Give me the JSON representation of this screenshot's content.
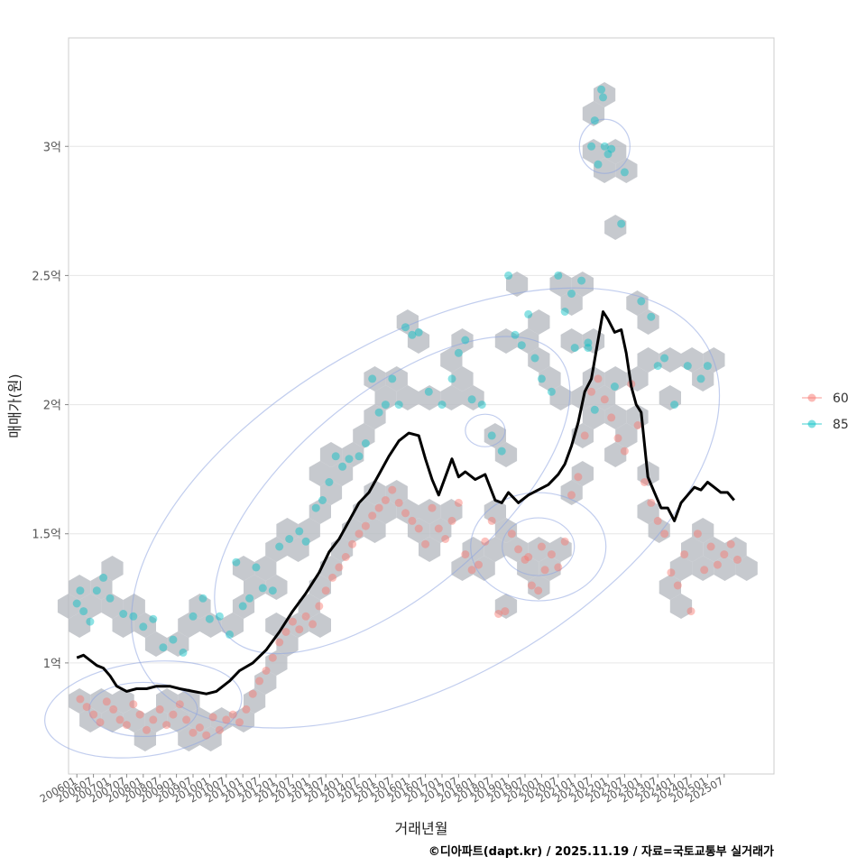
{
  "chart_data": {
    "type": "scatter",
    "title": "",
    "xlabel": "거래년월",
    "ylabel": "매매가(원)",
    "caption": "©디아파트(dapt.kr) / 2025.11.19 / 자료=국토교통부 실거래가",
    "xlim": [
      2005.75,
      2027.0
    ],
    "ylim": [
      0.57,
      3.42
    ],
    "grid": true,
    "legend_position": "right",
    "y_ticks": [
      {
        "value": 1.0,
        "label": "1억"
      },
      {
        "value": 1.5,
        "label": "1.5억"
      },
      {
        "value": 2.0,
        "label": "2억"
      },
      {
        "value": 2.5,
        "label": "2.5억"
      },
      {
        "value": 3.0,
        "label": "3억"
      }
    ],
    "x_ticks": [
      {
        "value": 2006.0,
        "label": "200601"
      },
      {
        "value": 2006.5,
        "label": "200607"
      },
      {
        "value": 2007.0,
        "label": "200701"
      },
      {
        "value": 2007.5,
        "label": "200707"
      },
      {
        "value": 2008.0,
        "label": "200801"
      },
      {
        "value": 2008.5,
        "label": "200807"
      },
      {
        "value": 2009.0,
        "label": "200901"
      },
      {
        "value": 2009.5,
        "label": "200907"
      },
      {
        "value": 2010.0,
        "label": "201001"
      },
      {
        "value": 2010.5,
        "label": "201007"
      },
      {
        "value": 2011.0,
        "label": "201101"
      },
      {
        "value": 2011.5,
        "label": "201107"
      },
      {
        "value": 2012.0,
        "label": "201201"
      },
      {
        "value": 2012.5,
        "label": "201207"
      },
      {
        "value": 2013.0,
        "label": "201301"
      },
      {
        "value": 2013.5,
        "label": "201307"
      },
      {
        "value": 2014.0,
        "label": "201401"
      },
      {
        "value": 2014.5,
        "label": "201407"
      },
      {
        "value": 2015.0,
        "label": "201501"
      },
      {
        "value": 2015.5,
        "label": "201507"
      },
      {
        "value": 2016.0,
        "label": "201601"
      },
      {
        "value": 2016.5,
        "label": "201607"
      },
      {
        "value": 2017.0,
        "label": "201701"
      },
      {
        "value": 2017.5,
        "label": "201707"
      },
      {
        "value": 2018.0,
        "label": "201801"
      },
      {
        "value": 2018.5,
        "label": "201807"
      },
      {
        "value": 2019.0,
        "label": "201901"
      },
      {
        "value": 2019.5,
        "label": "201907"
      },
      {
        "value": 2020.0,
        "label": "202001"
      },
      {
        "value": 2020.5,
        "label": "202007"
      },
      {
        "value": 2021.0,
        "label": "202101"
      },
      {
        "value": 2021.5,
        "label": "202107"
      },
      {
        "value": 2022.0,
        "label": "202201"
      },
      {
        "value": 2022.5,
        "label": "202207"
      },
      {
        "value": 2023.0,
        "label": "202301"
      },
      {
        "value": 2023.5,
        "label": "202307"
      },
      {
        "value": 2024.0,
        "label": "202401"
      },
      {
        "value": 2024.5,
        "label": "202407"
      },
      {
        "value": 2025.0,
        "label": "202501"
      },
      {
        "value": 2025.5,
        "label": "202507"
      }
    ],
    "series": [
      {
        "name": "60",
        "color": "#f8766d",
        "points": [
          [
            2006.1,
            0.86
          ],
          [
            2006.3,
            0.83
          ],
          [
            2006.5,
            0.8
          ],
          [
            2006.7,
            0.77
          ],
          [
            2006.9,
            0.85
          ],
          [
            2007.1,
            0.82
          ],
          [
            2007.3,
            0.78
          ],
          [
            2007.5,
            0.76
          ],
          [
            2007.7,
            0.84
          ],
          [
            2007.9,
            0.8
          ],
          [
            2008.1,
            0.74
          ],
          [
            2008.3,
            0.78
          ],
          [
            2008.5,
            0.82
          ],
          [
            2008.7,
            0.76
          ],
          [
            2008.9,
            0.8
          ],
          [
            2009.1,
            0.84
          ],
          [
            2009.3,
            0.78
          ],
          [
            2009.5,
            0.73
          ],
          [
            2009.7,
            0.75
          ],
          [
            2009.9,
            0.72
          ],
          [
            2010.1,
            0.79
          ],
          [
            2010.3,
            0.74
          ],
          [
            2010.5,
            0.78
          ],
          [
            2010.7,
            0.8
          ],
          [
            2010.9,
            0.77
          ],
          [
            2011.1,
            0.82
          ],
          [
            2011.3,
            0.88
          ],
          [
            2011.5,
            0.93
          ],
          [
            2011.7,
            0.97
          ],
          [
            2011.9,
            1.02
          ],
          [
            2012.1,
            1.08
          ],
          [
            2012.3,
            1.12
          ],
          [
            2012.5,
            1.16
          ],
          [
            2012.7,
            1.13
          ],
          [
            2012.9,
            1.18
          ],
          [
            2013.1,
            1.15
          ],
          [
            2013.3,
            1.22
          ],
          [
            2013.5,
            1.28
          ],
          [
            2013.7,
            1.33
          ],
          [
            2013.9,
            1.37
          ],
          [
            2014.1,
            1.41
          ],
          [
            2014.3,
            1.46
          ],
          [
            2014.5,
            1.5
          ],
          [
            2014.7,
            1.53
          ],
          [
            2014.9,
            1.57
          ],
          [
            2015.1,
            1.6
          ],
          [
            2015.3,
            1.63
          ],
          [
            2015.5,
            1.67
          ],
          [
            2015.7,
            1.62
          ],
          [
            2015.9,
            1.58
          ],
          [
            2016.1,
            1.55
          ],
          [
            2016.3,
            1.52
          ],
          [
            2016.5,
            1.46
          ],
          [
            2016.7,
            1.6
          ],
          [
            2016.9,
            1.52
          ],
          [
            2017.1,
            1.48
          ],
          [
            2017.3,
            1.55
          ],
          [
            2017.5,
            1.62
          ],
          [
            2017.7,
            1.42
          ],
          [
            2017.9,
            1.36
          ],
          [
            2018.1,
            1.38
          ],
          [
            2018.3,
            1.47
          ],
          [
            2018.5,
            1.55
          ],
          [
            2018.7,
            1.19
          ],
          [
            2018.9,
            1.2
          ],
          [
            2019.1,
            1.5
          ],
          [
            2019.3,
            1.44
          ],
          [
            2019.5,
            1.4
          ],
          [
            2019.7,
            1.3
          ],
          [
            2019.9,
            1.28
          ],
          [
            2020.1,
            1.36
          ],
          [
            2020.3,
            1.42
          ],
          [
            2020.5,
            1.37
          ],
          [
            2020.7,
            1.47
          ],
          [
            2020.9,
            1.65
          ],
          [
            2021.1,
            1.72
          ],
          [
            2021.3,
            1.88
          ],
          [
            2021.5,
            2.05
          ],
          [
            2021.7,
            2.1
          ],
          [
            2021.9,
            2.02
          ],
          [
            2022.1,
            1.95
          ],
          [
            2022.3,
            1.87
          ],
          [
            2022.5,
            1.82
          ],
          [
            2022.7,
            2.08
          ],
          [
            2022.9,
            1.92
          ],
          [
            2023.1,
            1.7
          ],
          [
            2023.3,
            1.62
          ],
          [
            2023.5,
            1.55
          ],
          [
            2023.7,
            1.5
          ],
          [
            2023.9,
            1.35
          ],
          [
            2024.1,
            1.3
          ],
          [
            2024.3,
            1.42
          ],
          [
            2024.5,
            1.2
          ],
          [
            2024.7,
            1.5
          ],
          [
            2024.9,
            1.36
          ],
          [
            2025.1,
            1.45
          ],
          [
            2025.3,
            1.38
          ],
          [
            2025.5,
            1.42
          ],
          [
            2025.7,
            1.46
          ],
          [
            2025.9,
            1.4
          ],
          [
            2019.6,
            1.41
          ],
          [
            2020.0,
            1.45
          ]
        ]
      },
      {
        "name": "85",
        "color": "#00bfc4",
        "points": [
          [
            2006.0,
            1.23
          ],
          [
            2006.2,
            1.2
          ],
          [
            2006.4,
            1.16
          ],
          [
            2006.1,
            1.28
          ],
          [
            2006.6,
            1.28
          ],
          [
            2006.8,
            1.33
          ],
          [
            2007.0,
            1.25
          ],
          [
            2007.4,
            1.19
          ],
          [
            2007.7,
            1.18
          ],
          [
            2008.0,
            1.14
          ],
          [
            2008.3,
            1.17
          ],
          [
            2008.6,
            1.06
          ],
          [
            2008.9,
            1.09
          ],
          [
            2009.2,
            1.04
          ],
          [
            2009.5,
            1.18
          ],
          [
            2009.8,
            1.25
          ],
          [
            2010.0,
            1.17
          ],
          [
            2010.3,
            1.18
          ],
          [
            2010.6,
            1.11
          ],
          [
            2010.8,
            1.39
          ],
          [
            2011.0,
            1.22
          ],
          [
            2011.2,
            1.25
          ],
          [
            2011.4,
            1.37
          ],
          [
            2011.6,
            1.29
          ],
          [
            2011.9,
            1.28
          ],
          [
            2012.1,
            1.45
          ],
          [
            2012.4,
            1.48
          ],
          [
            2012.7,
            1.51
          ],
          [
            2012.9,
            1.47
          ],
          [
            2013.2,
            1.6
          ],
          [
            2013.4,
            1.63
          ],
          [
            2013.6,
            1.7
          ],
          [
            2013.8,
            1.8
          ],
          [
            2014.0,
            1.76
          ],
          [
            2014.2,
            1.79
          ],
          [
            2014.5,
            1.8
          ],
          [
            2014.7,
            1.85
          ],
          [
            2014.9,
            2.1
          ],
          [
            2015.1,
            1.97
          ],
          [
            2015.3,
            2.0
          ],
          [
            2015.5,
            2.1
          ],
          [
            2015.7,
            2.0
          ],
          [
            2015.9,
            2.3
          ],
          [
            2016.1,
            2.27
          ],
          [
            2016.3,
            2.28
          ],
          [
            2016.6,
            2.05
          ],
          [
            2017.0,
            2.0
          ],
          [
            2017.3,
            2.1
          ],
          [
            2017.5,
            2.2
          ],
          [
            2017.7,
            2.25
          ],
          [
            2017.9,
            2.02
          ],
          [
            2018.2,
            2.0
          ],
          [
            2018.5,
            1.88
          ],
          [
            2018.8,
            1.82
          ],
          [
            2019.0,
            2.5
          ],
          [
            2019.2,
            2.27
          ],
          [
            2019.4,
            2.23
          ],
          [
            2019.6,
            2.35
          ],
          [
            2019.8,
            2.18
          ],
          [
            2020.0,
            2.1
          ],
          [
            2020.3,
            2.05
          ],
          [
            2020.5,
            2.5
          ],
          [
            2020.7,
            2.36
          ],
          [
            2020.9,
            2.43
          ],
          [
            2021.0,
            2.22
          ],
          [
            2021.2,
            2.48
          ],
          [
            2021.4,
            2.24
          ],
          [
            2021.5,
            3.0
          ],
          [
            2021.6,
            3.1
          ],
          [
            2021.7,
            2.93
          ],
          [
            2021.9,
            3.0
          ],
          [
            2022.0,
            2.97
          ],
          [
            2021.8,
            3.22
          ],
          [
            2021.85,
            3.19
          ],
          [
            2022.1,
            2.99
          ],
          [
            2022.5,
            2.9
          ],
          [
            2022.4,
            2.7
          ],
          [
            2022.2,
            2.07
          ],
          [
            2023.0,
            2.4
          ],
          [
            2023.3,
            2.34
          ],
          [
            2023.5,
            2.15
          ],
          [
            2023.7,
            2.18
          ],
          [
            2024.0,
            2.0
          ],
          [
            2024.4,
            2.15
          ],
          [
            2024.8,
            2.1
          ],
          [
            2025.0,
            2.15
          ],
          [
            2021.4,
            2.22
          ],
          [
            2021.6,
            1.98
          ]
        ]
      }
    ],
    "trend_line": {
      "name": "moving-average",
      "color": "#000000",
      "points": [
        [
          2006.0,
          1.02
        ],
        [
          2006.2,
          1.03
        ],
        [
          2006.4,
          1.01
        ],
        [
          2006.6,
          0.99
        ],
        [
          2006.8,
          0.98
        ],
        [
          2007.0,
          0.95
        ],
        [
          2007.2,
          0.91
        ],
        [
          2007.5,
          0.89
        ],
        [
          2007.8,
          0.9
        ],
        [
          2008.1,
          0.9
        ],
        [
          2008.4,
          0.91
        ],
        [
          2008.8,
          0.91
        ],
        [
          2009.1,
          0.9
        ],
        [
          2009.5,
          0.89
        ],
        [
          2009.9,
          0.88
        ],
        [
          2010.2,
          0.89
        ],
        [
          2010.6,
          0.93
        ],
        [
          2010.9,
          0.97
        ],
        [
          2011.3,
          1.0
        ],
        [
          2011.7,
          1.05
        ],
        [
          2012.1,
          1.12
        ],
        [
          2012.5,
          1.2
        ],
        [
          2012.9,
          1.27
        ],
        [
          2013.3,
          1.35
        ],
        [
          2013.6,
          1.43
        ],
        [
          2013.9,
          1.48
        ],
        [
          2014.2,
          1.55
        ],
        [
          2014.5,
          1.62
        ],
        [
          2014.8,
          1.66
        ],
        [
          2015.1,
          1.73
        ],
        [
          2015.4,
          1.8
        ],
        [
          2015.7,
          1.86
        ],
        [
          2016.0,
          1.89
        ],
        [
          2016.3,
          1.88
        ],
        [
          2016.5,
          1.79
        ],
        [
          2016.7,
          1.71
        ],
        [
          2016.9,
          1.65
        ],
        [
          2017.1,
          1.72
        ],
        [
          2017.3,
          1.79
        ],
        [
          2017.5,
          1.72
        ],
        [
          2017.7,
          1.74
        ],
        [
          2018.0,
          1.71
        ],
        [
          2018.3,
          1.73
        ],
        [
          2018.6,
          1.63
        ],
        [
          2018.8,
          1.62
        ],
        [
          2019.0,
          1.66
        ],
        [
          2019.3,
          1.62
        ],
        [
          2019.6,
          1.65
        ],
        [
          2019.9,
          1.67
        ],
        [
          2020.2,
          1.69
        ],
        [
          2020.5,
          1.73
        ],
        [
          2020.7,
          1.77
        ],
        [
          2020.9,
          1.84
        ],
        [
          2021.1,
          1.93
        ],
        [
          2021.3,
          2.05
        ],
        [
          2021.5,
          2.1
        ],
        [
          2021.7,
          2.25
        ],
        [
          2021.85,
          2.36
        ],
        [
          2022.0,
          2.33
        ],
        [
          2022.2,
          2.28
        ],
        [
          2022.4,
          2.29
        ],
        [
          2022.55,
          2.2
        ],
        [
          2022.7,
          2.07
        ],
        [
          2022.85,
          2.0
        ],
        [
          2023.0,
          1.97
        ],
        [
          2023.2,
          1.72
        ],
        [
          2023.4,
          1.66
        ],
        [
          2023.6,
          1.6
        ],
        [
          2023.8,
          1.6
        ],
        [
          2024.0,
          1.55
        ],
        [
          2024.2,
          1.62
        ],
        [
          2024.4,
          1.65
        ],
        [
          2024.6,
          1.68
        ],
        [
          2024.8,
          1.67
        ],
        [
          2025.0,
          1.7
        ],
        [
          2025.2,
          1.68
        ],
        [
          2025.4,
          1.66
        ],
        [
          2025.6,
          1.66
        ],
        [
          2025.8,
          1.63
        ]
      ]
    }
  }
}
